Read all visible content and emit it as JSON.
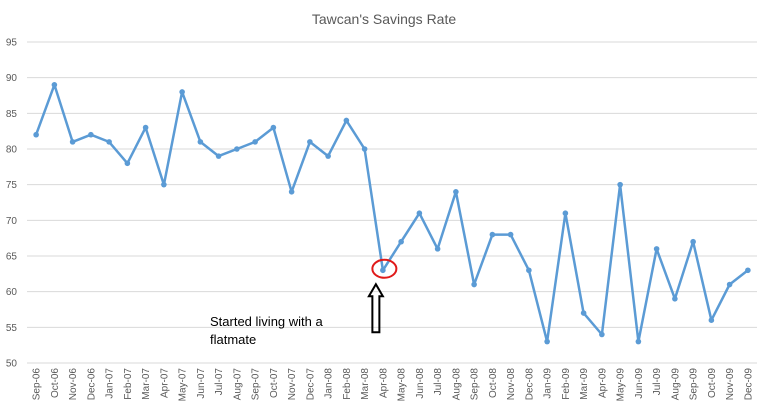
{
  "chart_data": {
    "type": "line",
    "title": "Tawcan's Savings Rate",
    "xlabel": "",
    "ylabel": "",
    "ylim": [
      50,
      95
    ],
    "yticks": [
      50,
      55,
      60,
      65,
      70,
      75,
      80,
      85,
      90,
      95
    ],
    "grid": true,
    "legend": "none",
    "categories": [
      "Sep-06",
      "Oct-06",
      "Nov-06",
      "Dec-06",
      "Jan-07",
      "Feb-07",
      "Mar-07",
      "Apr-07",
      "May-07",
      "Jun-07",
      "Jul-07",
      "Aug-07",
      "Sep-07",
      "Oct-07",
      "Nov-07",
      "Dec-07",
      "Jan-08",
      "Feb-08",
      "Mar-08",
      "Apr-08",
      "May-08",
      "Jun-08",
      "Jul-08",
      "Aug-08",
      "Sep-08",
      "Oct-08",
      "Nov-08",
      "Dec-08",
      "Jan-09",
      "Feb-09",
      "Mar-09",
      "Apr-09",
      "May-09",
      "Jun-09",
      "Jul-09",
      "Aug-09",
      "Sep-09",
      "Oct-09",
      "Nov-09",
      "Dec-09"
    ],
    "series": [
      {
        "values": [
          82,
          89,
          81,
          82,
          81,
          78,
          83,
          75,
          88,
          81,
          79,
          80,
          81,
          83,
          74,
          81,
          79,
          84,
          80,
          63,
          67,
          71,
          66,
          74,
          61,
          68,
          68,
          63,
          53,
          71,
          57,
          54,
          75,
          53,
          66,
          59,
          67,
          56,
          61,
          63
        ],
        "color": "#5b9bd5"
      }
    ],
    "annotations": [
      {
        "text_lines": [
          "Started living with a",
          "flatmate"
        ],
        "target_category": "Apr-08",
        "target_value": 63,
        "circle_color": "#e01a1a",
        "arrow_color": "#000000"
      }
    ]
  }
}
